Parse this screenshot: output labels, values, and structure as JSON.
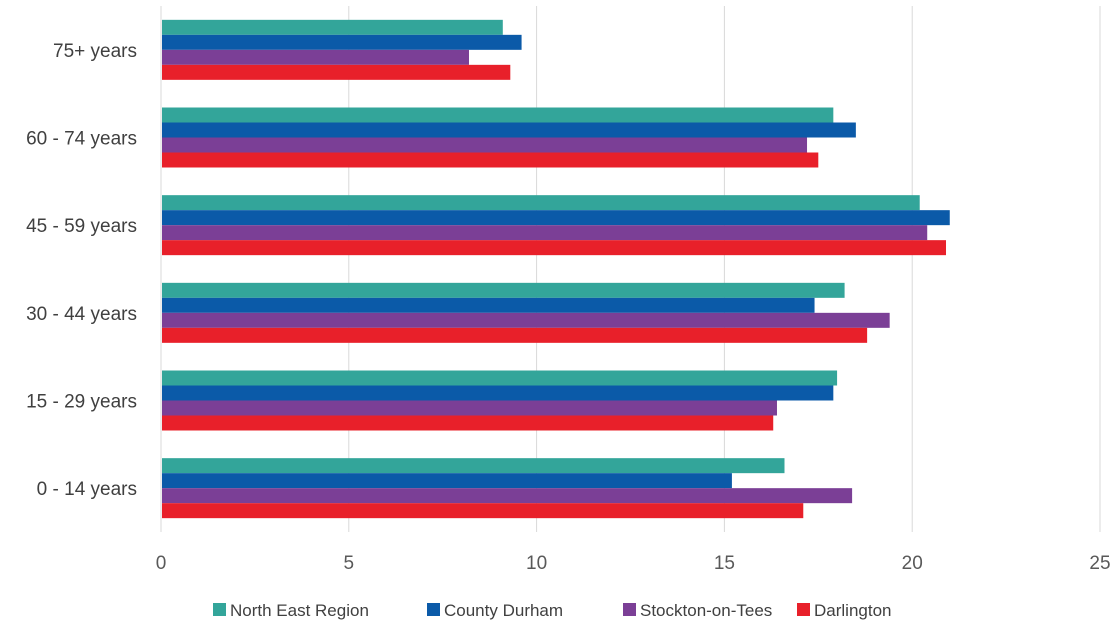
{
  "chart_data": {
    "type": "bar",
    "orientation": "horizontal",
    "title": "",
    "xlabel": "",
    "ylabel": "",
    "categories": [
      "0 - 14 years",
      "15 - 29 years",
      "30 - 44 years",
      "45 - 59 years",
      "60 - 74 years",
      "75+ years"
    ],
    "series": [
      {
        "name": "North East Region",
        "color": "#33A59A",
        "values": [
          16.6,
          18.0,
          18.2,
          20.2,
          17.9,
          9.1
        ]
      },
      {
        "name": "County Durham",
        "color": "#0B5AA8",
        "values": [
          15.2,
          17.9,
          17.4,
          21.0,
          18.5,
          9.6
        ]
      },
      {
        "name": "Stockton-on-Tees",
        "color": "#7B3F96",
        "values": [
          18.4,
          16.4,
          19.4,
          20.4,
          17.2,
          8.2
        ]
      },
      {
        "name": "Darlington",
        "color": "#E8202A",
        "values": [
          17.1,
          16.3,
          18.8,
          20.9,
          17.5,
          9.3
        ]
      }
    ],
    "xlim": [
      0,
      25
    ],
    "x_ticks": [
      "0",
      "5",
      "10",
      "15",
      "20",
      "25"
    ],
    "grid": "vertical",
    "legend_position": "bottom"
  }
}
